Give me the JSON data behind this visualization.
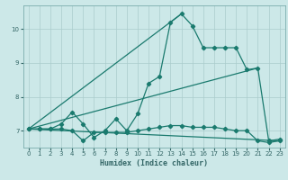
{
  "xlabel": "Humidex (Indice chaleur)",
  "background_color": "#cce8e8",
  "grid_color": "#aacccc",
  "line_color": "#1a7a6e",
  "spine_color": "#7aadad",
  "tick_color": "#336666",
  "xlim": [
    -0.5,
    23.5
  ],
  "ylim": [
    6.5,
    10.7
  ],
  "yticks": [
    7,
    8,
    9,
    10
  ],
  "xticks": [
    0,
    1,
    2,
    3,
    4,
    5,
    6,
    7,
    8,
    9,
    10,
    11,
    12,
    13,
    14,
    15,
    16,
    17,
    18,
    19,
    20,
    21,
    22,
    23
  ],
  "series_main_x": [
    0,
    1,
    2,
    3,
    4,
    5,
    6,
    7,
    8,
    9,
    10,
    11,
    12,
    13,
    14,
    15,
    16,
    17,
    18,
    19,
    20,
    21,
    22,
    23
  ],
  "series_main_y": [
    7.05,
    7.05,
    7.05,
    7.2,
    7.55,
    7.2,
    6.8,
    7.0,
    7.35,
    7.0,
    7.5,
    8.4,
    8.6,
    10.2,
    10.45,
    10.1,
    9.45,
    9.45,
    9.45,
    9.45,
    8.8,
    8.85,
    6.7,
    6.75
  ],
  "series_flat_x": [
    0,
    1,
    2,
    3,
    4,
    5,
    6,
    7,
    8,
    9,
    10,
    11,
    12,
    13,
    14,
    15,
    16,
    17,
    18,
    19,
    20,
    21,
    22,
    23
  ],
  "series_flat_y": [
    7.05,
    7.05,
    7.05,
    7.05,
    7.0,
    6.7,
    6.95,
    6.95,
    6.95,
    6.95,
    7.0,
    7.05,
    7.1,
    7.15,
    7.15,
    7.1,
    7.1,
    7.1,
    7.05,
    7.0,
    7.0,
    6.7,
    6.65,
    6.7
  ],
  "series_line1_x": [
    0,
    21
  ],
  "series_line1_y": [
    7.05,
    8.85
  ],
  "series_line2_x": [
    0,
    23
  ],
  "series_line2_y": [
    7.05,
    6.7
  ],
  "series_line3_x": [
    0,
    14
  ],
  "series_line3_y": [
    7.05,
    10.45
  ]
}
